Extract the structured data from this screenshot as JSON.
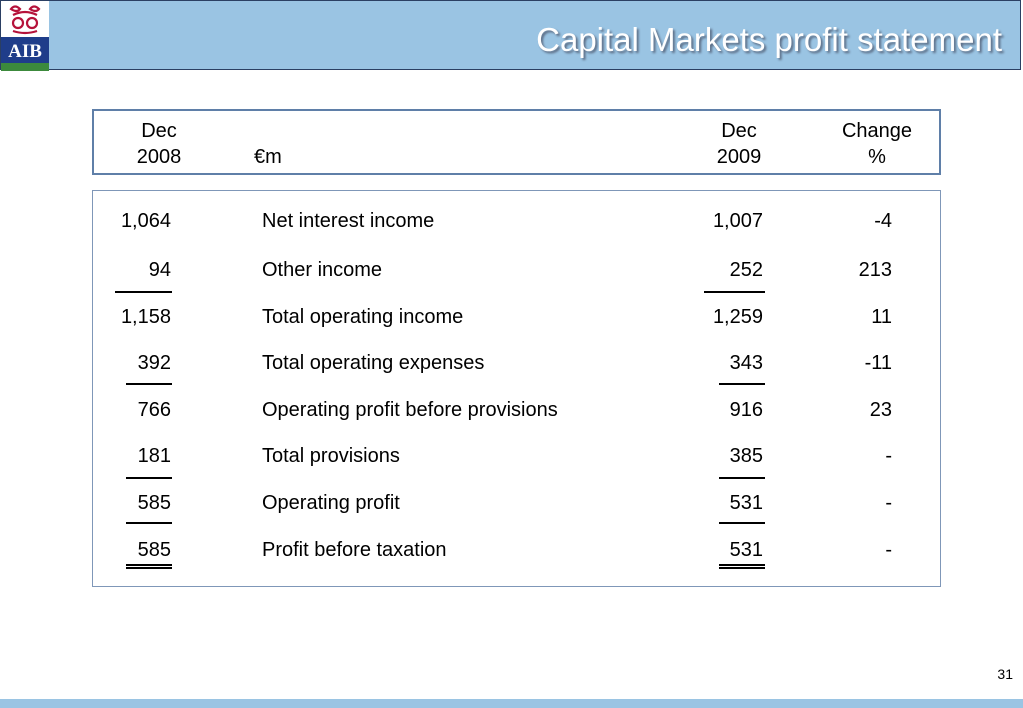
{
  "header": {
    "brand": "AIB",
    "title": "Capital Markets profit statement"
  },
  "table_header": {
    "col1_line1": "Dec",
    "col1_line2": "2008",
    "unit": "€m",
    "col3_line1": "Dec",
    "col3_line2": "2009",
    "col4_line1": "Change",
    "col4_line2": "%"
  },
  "rows": [
    {
      "dec2008": "1,064",
      "label": "Net interest income",
      "dec2009": "1,007",
      "change": "-4"
    },
    {
      "dec2008": "94",
      "label": "Other income",
      "dec2009": "252",
      "change": "213"
    },
    {
      "dec2008": "1,158",
      "label": "Total operating income",
      "dec2009": "1,259",
      "change": "11"
    },
    {
      "dec2008": "392",
      "label": "Total operating expenses",
      "dec2009": "343",
      "change": "-11"
    },
    {
      "dec2008": "766",
      "label": "Operating profit before provisions",
      "dec2009": "916",
      "change": "23"
    },
    {
      "dec2008": "181",
      "label": "Total provisions",
      "dec2009": "385",
      "change": "-"
    },
    {
      "dec2008": "585",
      "label": "Operating profit",
      "dec2009": "531",
      "change": "-"
    },
    {
      "dec2008": "585",
      "label": "Profit before taxation",
      "dec2009": "531",
      "change": "-"
    }
  ],
  "page_number": "31",
  "colors": {
    "header_bg": "#9ac4e3",
    "logo_red": "#b5123a",
    "logo_blue": "#1f3d8a",
    "logo_green": "#3c8a3c",
    "box_border": "#5f7fa8"
  }
}
